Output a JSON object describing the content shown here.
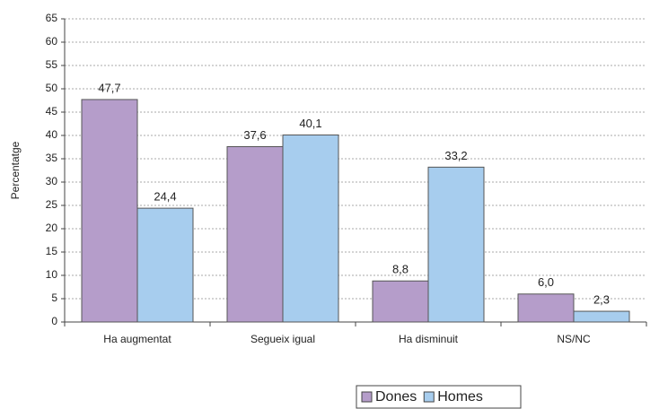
{
  "chart_data": {
    "type": "bar",
    "y_label": "Percentatge",
    "categories": [
      "Ha augmentat",
      "Segueix igual",
      "Ha disminuit",
      "NS/NC"
    ],
    "series": [
      {
        "name": "Dones",
        "color": "#b59dca",
        "values": [
          47.7,
          37.6,
          8.8,
          6.0
        ],
        "value_labels": [
          "47,7",
          "37,6",
          "8,8",
          "6,0"
        ]
      },
      {
        "name": "Homes",
        "color": "#a7cdee",
        "values": [
          24.4,
          40.1,
          33.2,
          2.3
        ],
        "value_labels": [
          "24,4",
          "40,1",
          "33,2",
          "2,3"
        ]
      }
    ],
    "ylim": [
      0,
      65
    ],
    "yticks": [
      0,
      5,
      10,
      15,
      20,
      25,
      30,
      35,
      40,
      45,
      50,
      55,
      60,
      65
    ],
    "grid": true,
    "legend": "bottom"
  }
}
